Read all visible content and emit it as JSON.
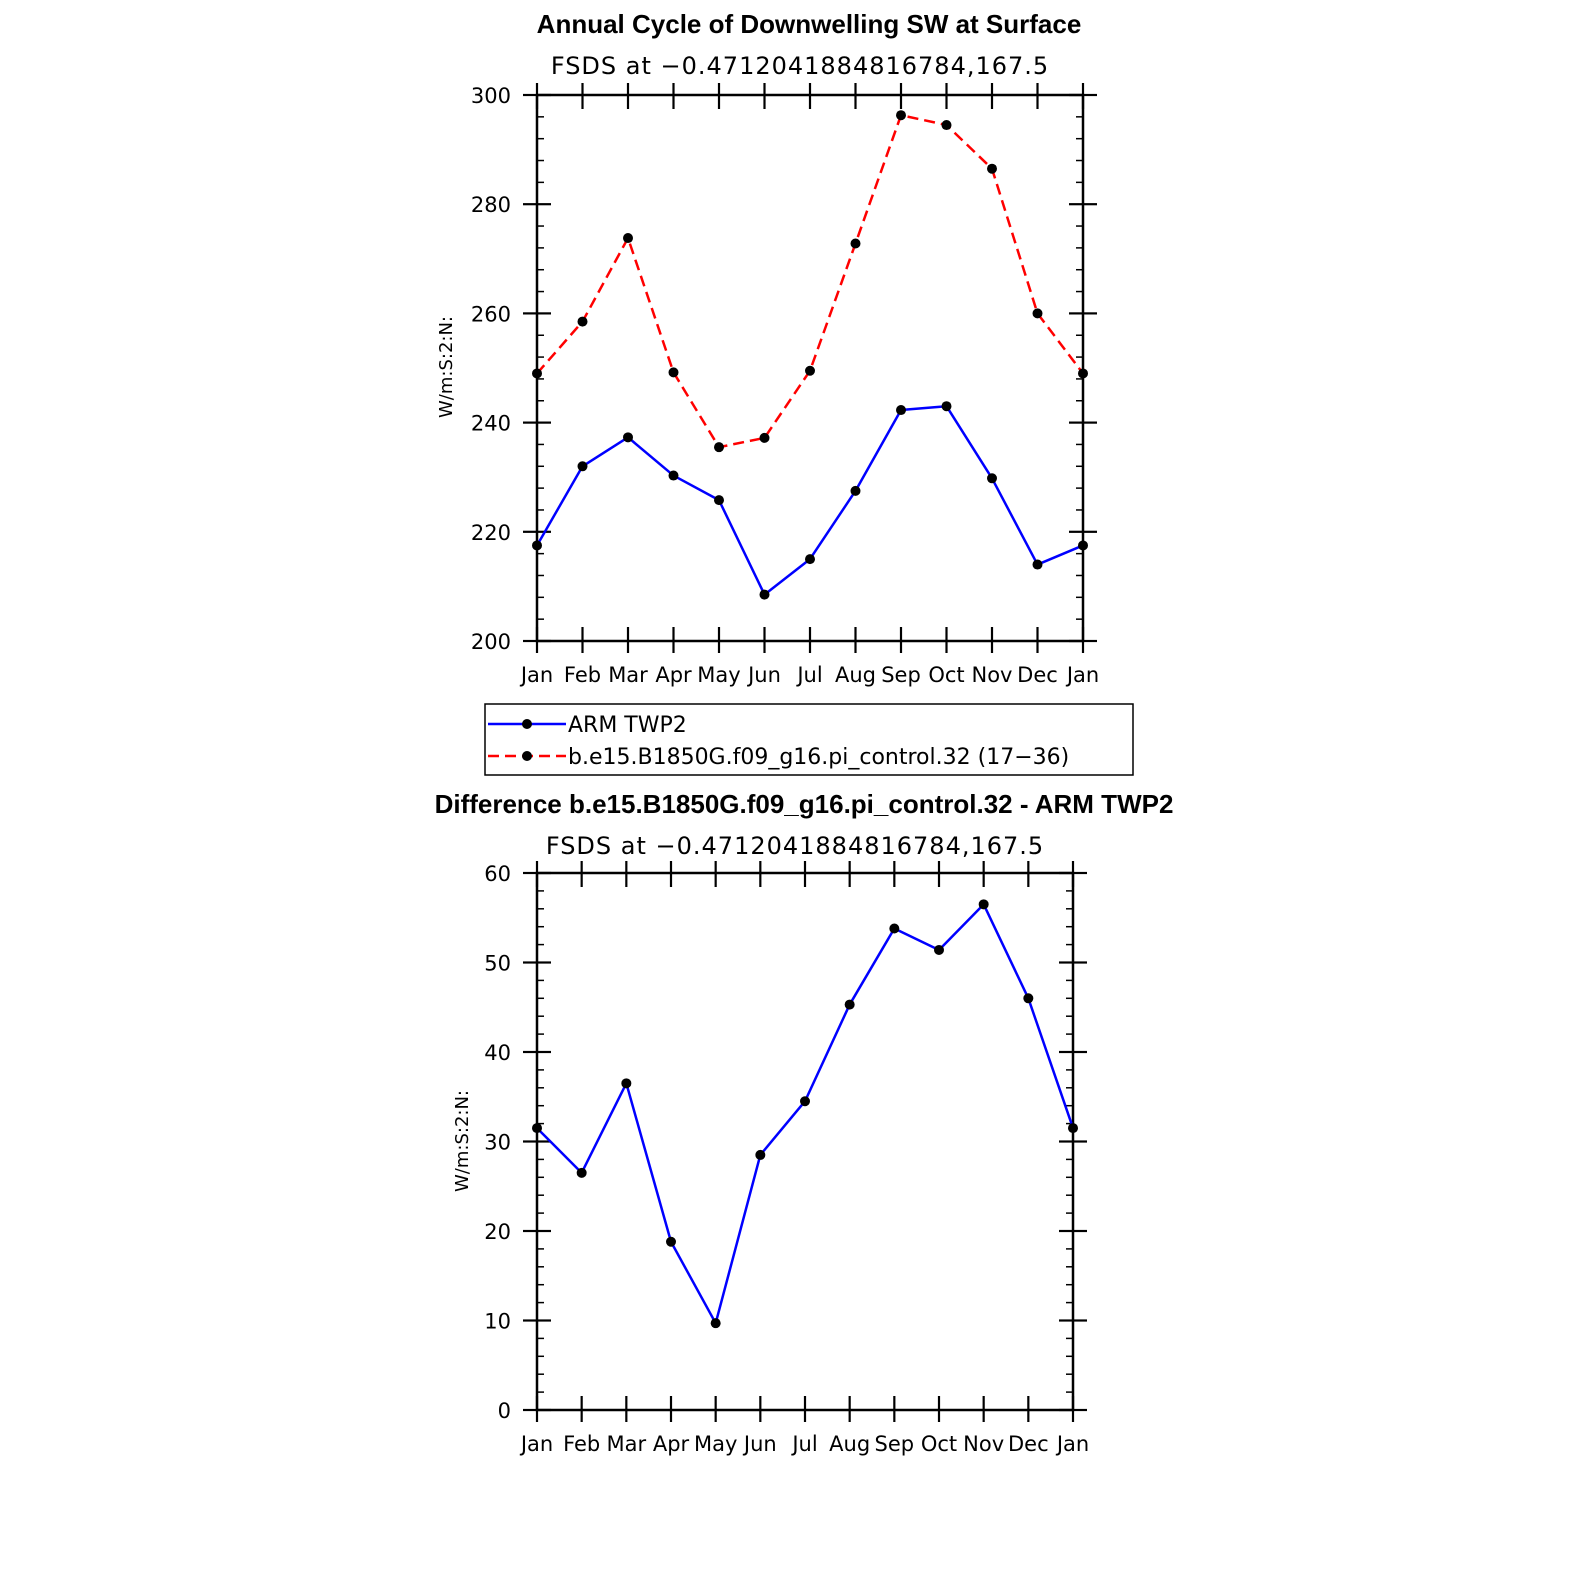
{
  "chart_data": [
    {
      "type": "line",
      "title": "Annual Cycle of Downwelling SW at Surface",
      "subtitle": "FSDS at −0.4712041884816784,167.5",
      "ylabel": "W/m:S:2:N:",
      "xlabel": "",
      "ylim": [
        200,
        300
      ],
      "yticks": [
        200,
        220,
        240,
        260,
        280,
        300
      ],
      "categories": [
        "Jan",
        "Feb",
        "Mar",
        "Apr",
        "May",
        "Jun",
        "Jul",
        "Aug",
        "Sep",
        "Oct",
        "Nov",
        "Dec",
        "Jan"
      ],
      "grid": false,
      "legend_position": "below",
      "series": [
        {
          "name": "ARM TWP2",
          "color": "#0000ff",
          "dash": "solid",
          "values": [
            217.5,
            232,
            237.3,
            230.3,
            225.8,
            208.5,
            215,
            227.5,
            242.3,
            243,
            229.8,
            214,
            217.5
          ]
        },
        {
          "name": "b.e15.B1850G.f09_g16.pi_control.32 (17−36)",
          "color": "#ff0000",
          "dash": "dashed",
          "values": [
            249,
            258.5,
            273.8,
            249.2,
            235.5,
            237.2,
            249.5,
            272.8,
            296.3,
            294.5,
            286.5,
            260,
            249
          ]
        }
      ]
    },
    {
      "type": "line",
      "title": "Difference b.e15.B1850G.f09_g16.pi_control.32 - ARM TWP2",
      "subtitle": "FSDS at −0.4712041884816784,167.5",
      "ylabel": "W/m:S:2:N:",
      "xlabel": "",
      "ylim": [
        0,
        60
      ],
      "yticks": [
        0,
        10,
        20,
        30,
        40,
        50,
        60
      ],
      "categories": [
        "Jan",
        "Feb",
        "Mar",
        "Apr",
        "May",
        "Jun",
        "Jul",
        "Aug",
        "Sep",
        "Oct",
        "Nov",
        "Dec",
        "Jan"
      ],
      "grid": false,
      "series": [
        {
          "color": "#0000ff",
          "dash": "solid",
          "values": [
            31.5,
            26.5,
            36.5,
            18.8,
            9.7,
            28.5,
            34.5,
            45.3,
            53.8,
            51.4,
            56.5,
            46,
            31.5
          ]
        }
      ]
    }
  ]
}
